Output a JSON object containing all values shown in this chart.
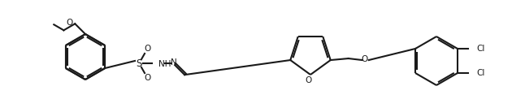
{
  "bg_color": "#ffffff",
  "line_color": "#1a1a1a",
  "line_width": 1.5,
  "figsize": [
    6.46,
    1.38
  ],
  "dpi": 100,
  "xlim": [
    0,
    646
  ],
  "ylim": [
    0,
    138
  ]
}
